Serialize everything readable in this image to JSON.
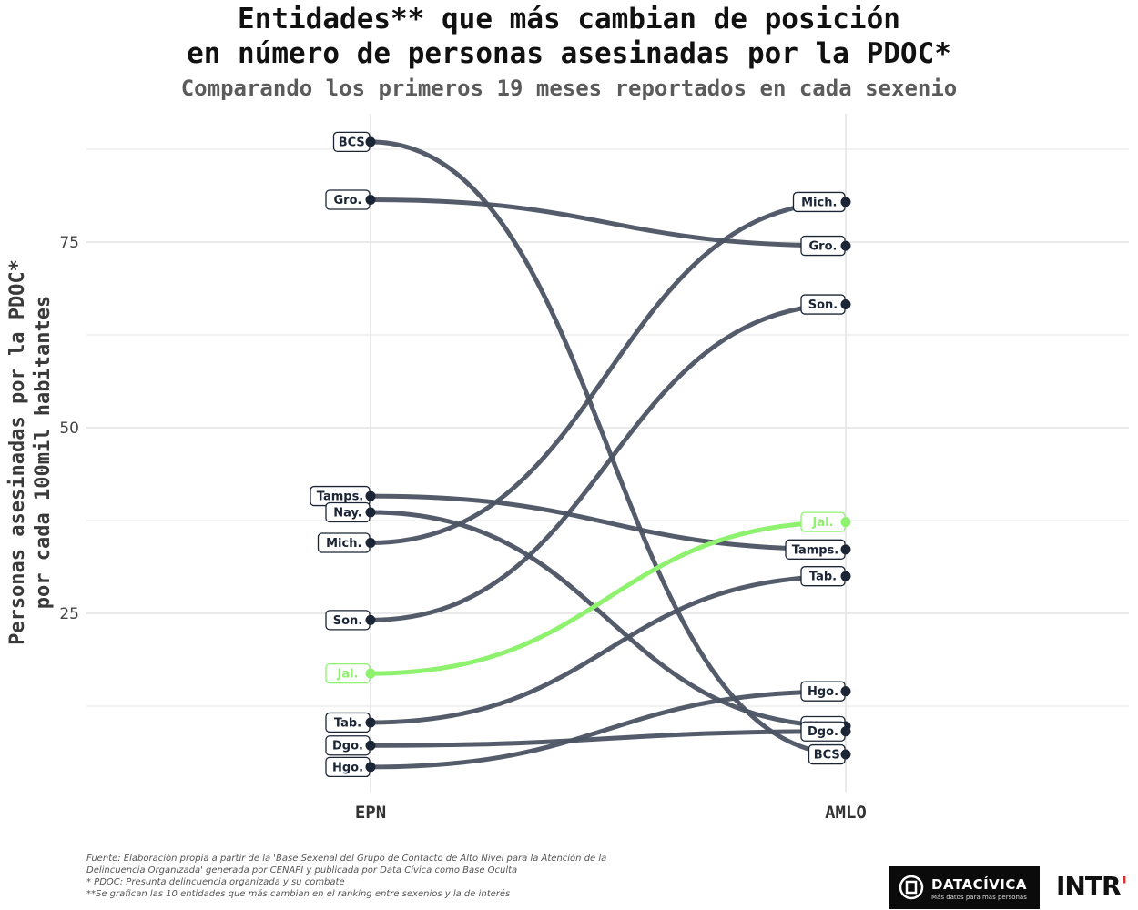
{
  "title_lines": [
    "Entidades** que más cambian de posición",
    "en número de personas asesinadas por la PDOC*"
  ],
  "subtitle": "Comparando los primeros 19 meses reportados en cada sexenio",
  "footnotes": [
    "Fuente: Elaboración propia a partir de la 'Base Sexenal del Grupo de Contacto de Alto Nivel para la Atención de la",
    "Delincuencia Organizada' generada por CENAPI y publicada por Data Cívica como Base Oculta",
    "* PDOC: Presunta delincuencia organizada y su combate",
    "**Se grafican las 10 entidades que más cambian en el ranking entre sexenios y la de interés"
  ],
  "logos": {
    "datacivica_name": "DATACÍVICA",
    "datacivica_tagline": "Más datos para más personas",
    "intr_text": "INTR",
    "intr_dot": "'"
  },
  "colors": {
    "line": "#4b5363",
    "highlight": "#8ef26f",
    "label_text": "#1b2535",
    "grid": "#e4e4e4"
  },
  "chart_data": {
    "type": "line",
    "chart_subtype": "slope",
    "categories": [
      "EPN",
      "AMLO"
    ],
    "ylabel": "Personas asesinadas por la PDOC*\npor cada 100mil habitantes",
    "xlabel": "",
    "ylim": [
      -5,
      92
    ],
    "yticks": [
      25,
      50,
      75
    ],
    "grid": true,
    "series": [
      {
        "name": "BCS",
        "values": [
          88.5,
          6.0
        ],
        "highlight": false
      },
      {
        "name": "Gro.",
        "values": [
          80.7,
          74.5
        ],
        "highlight": false
      },
      {
        "name": "Tamps.",
        "values": [
          40.8,
          33.6
        ],
        "highlight": false
      },
      {
        "name": "Nay.",
        "values": [
          38.6,
          9.8
        ],
        "highlight": false
      },
      {
        "name": "Mich.",
        "values": [
          34.5,
          80.4
        ],
        "highlight": false
      },
      {
        "name": "Son.",
        "values": [
          24.1,
          66.6
        ],
        "highlight": false
      },
      {
        "name": "Jal.",
        "values": [
          16.9,
          37.3
        ],
        "highlight": true
      },
      {
        "name": "Tab.",
        "values": [
          10.3,
          30.0
        ],
        "highlight": false
      },
      {
        "name": "Dgo.",
        "values": [
          7.2,
          9.1
        ],
        "highlight": false
      },
      {
        "name": "Hgo.",
        "values": [
          4.3,
          14.5
        ],
        "highlight": false
      }
    ]
  }
}
